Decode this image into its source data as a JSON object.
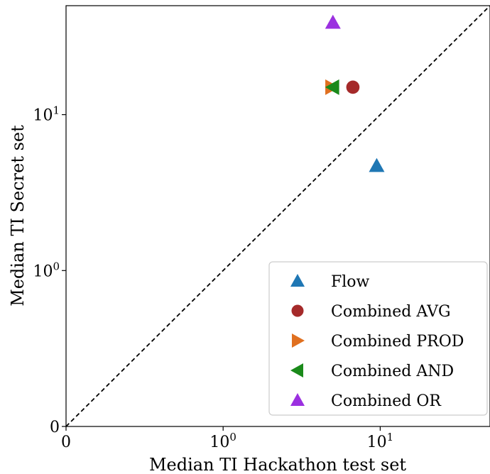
{
  "chart_data": {
    "type": "scatter",
    "xscale": "symlog",
    "yscale": "symlog",
    "linthresh": 1,
    "xlim": [
      0,
      50
    ],
    "ylim": [
      0,
      50
    ],
    "xlabel": "Median TI Hackathon test set",
    "ylabel": "Median TI Secret set",
    "x_ticks": [
      {
        "value": 0,
        "base": "0",
        "exp": ""
      },
      {
        "value": 1,
        "base": "10",
        "exp": "0"
      },
      {
        "value": 10,
        "base": "10",
        "exp": "1"
      }
    ],
    "y_ticks": [
      {
        "value": 0,
        "base": "0",
        "exp": ""
      },
      {
        "value": 1,
        "base": "10",
        "exp": "0"
      },
      {
        "value": 10,
        "base": "10",
        "exp": "1"
      }
    ],
    "reference_line": {
      "kind": "y=x",
      "style": "dashed",
      "color": "#000000"
    },
    "legend_position": "lower-right",
    "series": [
      {
        "name": "Flow",
        "marker": "triangle-up",
        "color": "#1f77b4",
        "x": 9.5,
        "y": 4.7
      },
      {
        "name": "Combined AVG",
        "marker": "circle",
        "color": "#a52a2a",
        "x": 6.7,
        "y": 15.0
      },
      {
        "name": "Combined PROD",
        "marker": "triangle-right",
        "color": "#e07020",
        "x": 4.9,
        "y": 15.0
      },
      {
        "name": "Combined AND",
        "marker": "triangle-left",
        "color": "#1a8a1a",
        "x": 5.0,
        "y": 15.0
      },
      {
        "name": "Combined OR",
        "marker": "triangle-up",
        "color": "#9b30e0",
        "x": 5.0,
        "y": 39.0
      }
    ]
  }
}
